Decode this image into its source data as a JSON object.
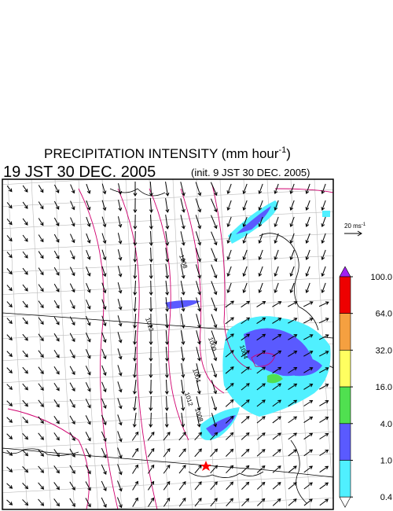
{
  "header": {
    "title": {
      "prefix": "PRECIPITATION INTENSITY (mm hour",
      "superscript": "-1",
      "suffix": ")"
    },
    "valid_time": "19 JST 30 DEC. 2005",
    "init_time": "(init. 9 JST 30 DEC. 2005)"
  },
  "wind_reference": {
    "prefix": "20 ms",
    "superscript": "-1"
  },
  "contour_labels": [
    "1012",
    "1008",
    "1004",
    "1000",
    "1012",
    "1008",
    "1004"
  ],
  "colorbar": {
    "ticks": [
      {
        "value": 100,
        "label": "100.0"
      },
      {
        "value": 64,
        "label": "64.0"
      },
      {
        "value": 32,
        "label": "32.0"
      },
      {
        "value": 16,
        "label": "16.0"
      },
      {
        "value": 4,
        "label": "4.0"
      },
      {
        "value": 1,
        "label": "1.0"
      },
      {
        "value": 0.4,
        "label": "0.4"
      }
    ],
    "colors": [
      "#a020f0",
      "#ee0000",
      "#f5a040",
      "#ffff60",
      "#50e050",
      "#5a5aff",
      "#50f0ff",
      "#ffffff"
    ]
  }
}
